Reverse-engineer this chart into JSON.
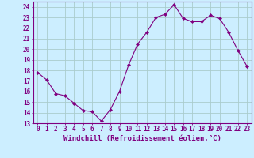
{
  "x": [
    0,
    1,
    2,
    3,
    4,
    5,
    6,
    7,
    8,
    9,
    10,
    11,
    12,
    13,
    14,
    15,
    16,
    17,
    18,
    19,
    20,
    21,
    22,
    23
  ],
  "y": [
    17.8,
    17.1,
    15.8,
    15.6,
    14.9,
    14.2,
    14.1,
    13.2,
    14.3,
    16.0,
    18.5,
    20.5,
    21.6,
    23.0,
    23.3,
    24.2,
    22.9,
    22.6,
    22.6,
    23.2,
    22.9,
    21.6,
    19.9,
    18.4
  ],
  "line_color": "#800080",
  "marker": "D",
  "marker_size": 2,
  "bg_color": "#cceeff",
  "grid_color": "#aacccc",
  "axis_color": "#800080",
  "tick_color": "#800080",
  "xlabel": "Windchill (Refroidissement éolien,°C)",
  "ylim": [
    13,
    24.5
  ],
  "xlim": [
    -0.5,
    23.5
  ],
  "yticks": [
    13,
    14,
    15,
    16,
    17,
    18,
    19,
    20,
    21,
    22,
    23,
    24
  ],
  "xticks": [
    0,
    1,
    2,
    3,
    4,
    5,
    6,
    7,
    8,
    9,
    10,
    11,
    12,
    13,
    14,
    15,
    16,
    17,
    18,
    19,
    20,
    21,
    22,
    23
  ],
  "font_size": 5.5,
  "label_font_size": 6.5
}
